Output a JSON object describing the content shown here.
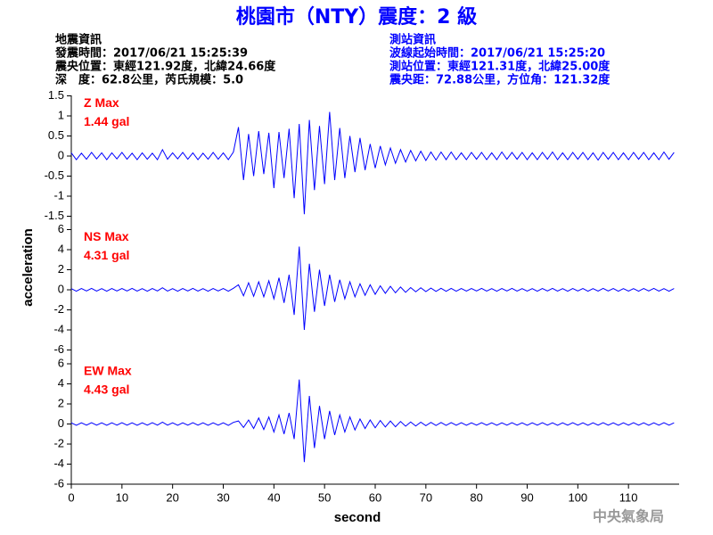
{
  "title": "桃園市（NTY）震度：2 級",
  "event_info": [
    "地震資訊",
    "發震時間：2017/06/21 15:25:39",
    "震央位置：東經121.92度，北緯24.66度",
    "深　度：62.8公里，芮氏規模：5.0"
  ],
  "station_info": [
    "測站資訊",
    "波線起始時間：2017/06/21 15:25:20",
    "測站位置：東經121.31度，北緯25.00度",
    "震央距：72.88公里，方位角：121.32度"
  ],
  "footer": "中央氣象局",
  "chart_data": [
    {
      "type": "line",
      "annotations": [
        "Z Max",
        "1.44 gal"
      ],
      "annotation_color": "#ff0000",
      "xlim": [
        0,
        120
      ],
      "ylim": [
        -1.5,
        1.5
      ],
      "yticks": [
        -1.5,
        -1,
        -0.5,
        0,
        0.5,
        1,
        1.5
      ],
      "x": [
        0,
        1,
        2,
        3,
        4,
        5,
        6,
        7,
        8,
        9,
        10,
        11,
        12,
        13,
        14,
        15,
        16,
        17,
        18,
        19,
        20,
        21,
        22,
        23,
        24,
        25,
        26,
        27,
        28,
        29,
        30,
        31,
        32,
        33,
        34,
        35,
        36,
        37,
        38,
        39,
        40,
        41,
        42,
        43,
        44,
        45,
        46,
        47,
        48,
        49,
        50,
        51,
        52,
        53,
        54,
        55,
        56,
        57,
        58,
        59,
        60,
        61,
        62,
        63,
        64,
        65,
        66,
        67,
        68,
        69,
        70,
        71,
        72,
        73,
        74,
        75,
        76,
        77,
        78,
        79,
        80,
        81,
        82,
        83,
        84,
        85,
        86,
        87,
        88,
        89,
        90,
        91,
        92,
        93,
        94,
        95,
        96,
        97,
        98,
        99,
        100,
        101,
        102,
        103,
        104,
        105,
        106,
        107,
        108,
        109,
        110,
        111,
        112,
        113,
        114,
        115,
        116,
        117,
        118,
        119
      ],
      "series": [
        {
          "color": "#0000ff",
          "values": [
            0.08,
            -0.09,
            0.07,
            -0.08,
            0.09,
            -0.07,
            0.08,
            -0.09,
            0.08,
            -0.07,
            0.09,
            -0.08,
            0.07,
            -0.09,
            0.08,
            -0.08,
            0.07,
            -0.09,
            0.16,
            -0.08,
            0.08,
            -0.07,
            0.09,
            -0.08,
            0.08,
            -0.09,
            0.07,
            -0.08,
            0.09,
            -0.08,
            0.08,
            -0.09,
            0.1,
            0.72,
            -0.6,
            0.55,
            -0.5,
            0.62,
            -0.45,
            0.58,
            -0.8,
            0.6,
            -0.55,
            0.68,
            -1.05,
            0.8,
            -1.45,
            0.9,
            -0.85,
            0.75,
            -0.7,
            1.1,
            -0.6,
            0.7,
            -0.55,
            0.5,
            -0.4,
            0.45,
            -0.35,
            0.3,
            -0.3,
            0.25,
            -0.22,
            0.2,
            -0.18,
            0.16,
            -0.15,
            0.14,
            -0.12,
            0.12,
            -0.11,
            0.1,
            -0.1,
            0.1,
            -0.09,
            0.1,
            -0.09,
            0.08,
            -0.09,
            0.09,
            -0.08,
            0.09,
            -0.09,
            0.08,
            -0.09,
            0.1,
            -0.08,
            0.09,
            -0.08,
            0.09,
            -0.09,
            0.08,
            -0.09,
            0.09,
            -0.08,
            0.1,
            -0.09,
            0.08,
            -0.09,
            0.09,
            -0.08,
            0.09,
            -0.09,
            0.08,
            -0.1,
            0.09,
            -0.08,
            0.09,
            -0.09,
            0.08,
            -0.09,
            0.09,
            -0.08,
            0.09,
            -0.09,
            0.08,
            -0.09,
            0.1,
            -0.08,
            0.09
          ]
        }
      ]
    },
    {
      "type": "line",
      "annotations": [
        "NS Max",
        "4.31 gal"
      ],
      "annotation_color": "#ff0000",
      "ylabel": "acceleration",
      "xlim": [
        0,
        120
      ],
      "ylim": [
        -6,
        6
      ],
      "yticks": [
        -6,
        -4,
        -2,
        0,
        2,
        4,
        6
      ],
      "x": [
        0,
        1,
        2,
        3,
        4,
        5,
        6,
        7,
        8,
        9,
        10,
        11,
        12,
        13,
        14,
        15,
        16,
        17,
        18,
        19,
        20,
        21,
        22,
        23,
        24,
        25,
        26,
        27,
        28,
        29,
        30,
        31,
        32,
        33,
        34,
        35,
        36,
        37,
        38,
        39,
        40,
        41,
        42,
        43,
        44,
        45,
        46,
        47,
        48,
        49,
        50,
        51,
        52,
        53,
        54,
        55,
        56,
        57,
        58,
        59,
        60,
        61,
        62,
        63,
        64,
        65,
        66,
        67,
        68,
        69,
        70,
        71,
        72,
        73,
        74,
        75,
        76,
        77,
        78,
        79,
        80,
        81,
        82,
        83,
        84,
        85,
        86,
        87,
        88,
        89,
        90,
        91,
        92,
        93,
        94,
        95,
        96,
        97,
        98,
        99,
        100,
        101,
        102,
        103,
        104,
        105,
        106,
        107,
        108,
        109,
        110,
        111,
        112,
        113,
        114,
        115,
        116,
        117,
        118,
        119
      ],
      "series": [
        {
          "color": "#0000ff",
          "values": [
            0.12,
            -0.14,
            0.13,
            -0.12,
            0.14,
            -0.13,
            0.12,
            -0.14,
            0.13,
            -0.12,
            0.13,
            -0.12,
            0.14,
            -0.13,
            0.12,
            -0.14,
            0.13,
            -0.12,
            0.2,
            -0.13,
            0.12,
            -0.14,
            0.13,
            -0.12,
            0.14,
            -0.13,
            0.12,
            -0.14,
            0.13,
            -0.12,
            0.13,
            -0.14,
            0.15,
            0.5,
            -0.6,
            0.7,
            -0.65,
            0.8,
            -0.7,
            0.9,
            -0.9,
            1.2,
            -1.3,
            1.5,
            -2.5,
            4.31,
            -4.0,
            2.6,
            -2.2,
            2.0,
            -1.6,
            1.5,
            -1.2,
            1.0,
            -0.9,
            0.8,
            -0.7,
            0.6,
            -0.55,
            0.5,
            -0.45,
            0.4,
            -0.35,
            0.35,
            -0.3,
            0.28,
            -0.25,
            0.22,
            -0.2,
            0.2,
            -0.18,
            0.17,
            -0.16,
            0.15,
            -0.15,
            0.14,
            -0.14,
            0.13,
            -0.13,
            0.13,
            -0.12,
            0.14,
            -0.13,
            0.12,
            -0.14,
            0.13,
            -0.12,
            0.14,
            -0.13,
            0.12,
            -0.13,
            0.12,
            -0.14,
            0.13,
            -0.12,
            0.14,
            -0.13,
            0.12,
            -0.14,
            0.13,
            -0.12,
            0.13,
            -0.14,
            0.12,
            -0.13,
            0.14,
            -0.12,
            0.13,
            -0.14,
            0.12,
            -0.13,
            0.12,
            -0.14,
            0.13,
            -0.12,
            0.14,
            -0.13,
            0.12,
            -0.14,
            0.13
          ]
        }
      ]
    },
    {
      "type": "line",
      "annotations": [
        "EW Max",
        "4.43 gal"
      ],
      "annotation_color": "#ff0000",
      "xlabel": "second",
      "xlim": [
        0,
        120
      ],
      "xticks": [
        0,
        10,
        20,
        30,
        40,
        50,
        60,
        70,
        80,
        90,
        100,
        110
      ],
      "ylim": [
        -6,
        6
      ],
      "yticks": [
        -6,
        -4,
        -2,
        0,
        2,
        4,
        6
      ],
      "x": [
        0,
        1,
        2,
        3,
        4,
        5,
        6,
        7,
        8,
        9,
        10,
        11,
        12,
        13,
        14,
        15,
        16,
        17,
        18,
        19,
        20,
        21,
        22,
        23,
        24,
        25,
        26,
        27,
        28,
        29,
        30,
        31,
        32,
        33,
        34,
        35,
        36,
        37,
        38,
        39,
        40,
        41,
        42,
        43,
        44,
        45,
        46,
        47,
        48,
        49,
        50,
        51,
        52,
        53,
        54,
        55,
        56,
        57,
        58,
        59,
        60,
        61,
        62,
        63,
        64,
        65,
        66,
        67,
        68,
        69,
        70,
        71,
        72,
        73,
        74,
        75,
        76,
        77,
        78,
        79,
        80,
        81,
        82,
        83,
        84,
        85,
        86,
        87,
        88,
        89,
        90,
        91,
        92,
        93,
        94,
        95,
        96,
        97,
        98,
        99,
        100,
        101,
        102,
        103,
        104,
        105,
        106,
        107,
        108,
        109,
        110,
        111,
        112,
        113,
        114,
        115,
        116,
        117,
        118,
        119
      ],
      "series": [
        {
          "color": "#0000ff",
          "values": [
            0.12,
            -0.13,
            0.12,
            -0.12,
            0.13,
            -0.12,
            0.12,
            -0.13,
            0.12,
            -0.12,
            0.13,
            -0.12,
            0.12,
            -0.13,
            0.12,
            -0.12,
            0.13,
            -0.12,
            0.18,
            -0.12,
            0.12,
            -0.13,
            0.12,
            -0.12,
            0.13,
            -0.12,
            0.12,
            -0.13,
            0.12,
            -0.12,
            0.12,
            -0.14,
            0.16,
            0.3,
            -0.35,
            0.4,
            -0.45,
            0.6,
            -0.55,
            0.7,
            -0.8,
            0.9,
            -1.0,
            1.1,
            -1.5,
            4.43,
            -3.8,
            2.8,
            -2.4,
            1.8,
            -1.5,
            1.3,
            -1.1,
            0.9,
            -0.8,
            0.7,
            -0.6,
            0.5,
            -0.45,
            0.4,
            -0.38,
            0.35,
            -0.3,
            0.3,
            -0.28,
            0.25,
            -0.22,
            0.2,
            -0.2,
            0.18,
            -0.17,
            0.16,
            -0.15,
            0.15,
            -0.14,
            0.14,
            -0.13,
            0.13,
            -0.13,
            0.12,
            -0.12,
            0.13,
            -0.12,
            0.12,
            -0.13,
            0.12,
            -0.12,
            0.13,
            -0.12,
            0.12,
            -0.13,
            0.12,
            -0.12,
            0.13,
            -0.12,
            0.12,
            -0.13,
            0.12,
            -0.12,
            0.13,
            -0.12,
            0.12,
            -0.13,
            0.12,
            -0.12,
            0.13,
            -0.12,
            0.12,
            -0.13,
            0.12,
            -0.12,
            0.13,
            -0.12,
            0.12,
            -0.13,
            0.12,
            -0.12,
            0.13,
            -0.12,
            0.12
          ]
        }
      ]
    }
  ]
}
